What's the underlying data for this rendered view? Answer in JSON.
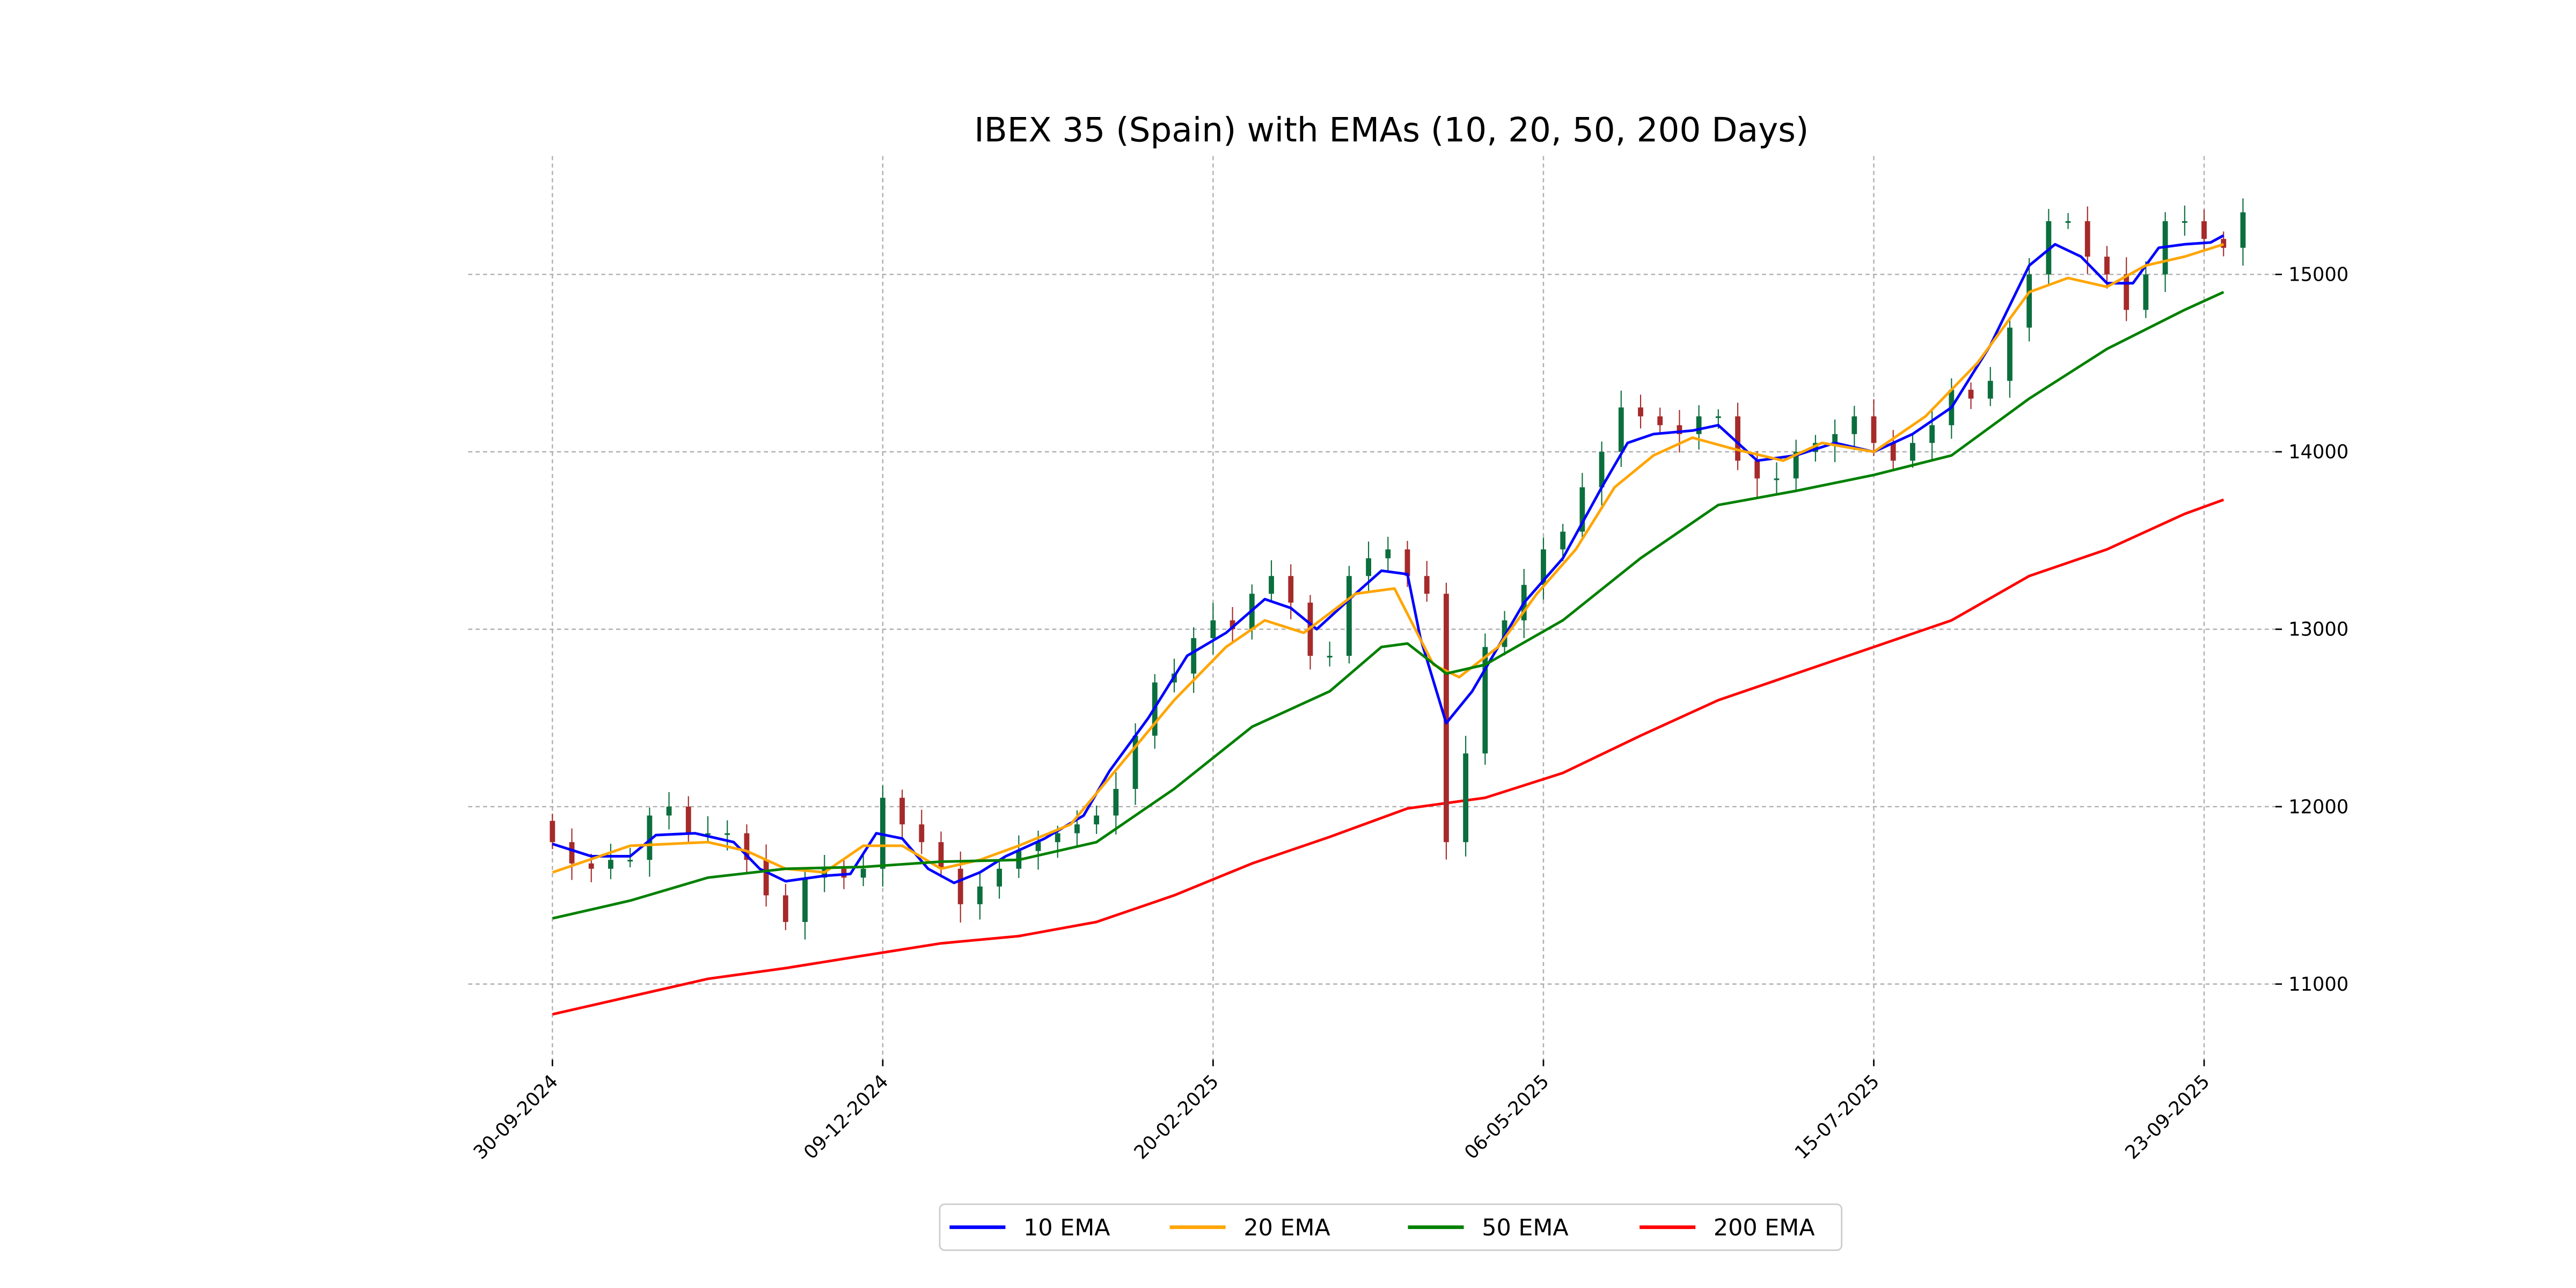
{
  "chart_data": {
    "type": "line",
    "subtype": "candlestick-with-ema",
    "title": "IBEX 35 (Spain) with EMAs (10, 20, 50, 200 Days)",
    "xlabel": "",
    "ylabel": "",
    "x_units": "trading days since 30-09-2024",
    "xlim": [
      -13,
      266
    ],
    "ylim": [
      10574,
      15667
    ],
    "grid": true,
    "legend_position": "bottom-center",
    "x_ticks": [
      {
        "day": 0,
        "label": "30-09-2024"
      },
      {
        "day": 51,
        "label": "09-12-2024"
      },
      {
        "day": 102,
        "label": "20-02-2025"
      },
      {
        "day": 153,
        "label": "06-05-2025"
      },
      {
        "day": 204,
        "label": "15-07-2025"
      },
      {
        "day": 255,
        "label": "23-09-2025"
      }
    ],
    "y_ticks": [
      {
        "value": 11000,
        "label": "11000"
      },
      {
        "value": 12000,
        "label": "12000"
      },
      {
        "value": 13000,
        "label": "13000"
      },
      {
        "value": 14000,
        "label": "14000"
      },
      {
        "value": 15000,
        "label": "15000"
      }
    ],
    "candles": {
      "day_step": 3,
      "first_open": 11920,
      "close": [
        11800,
        11680,
        11650,
        11700,
        11700,
        11950,
        12000,
        11850,
        11850,
        11850,
        11700,
        11500,
        11350,
        11600,
        11650,
        11600,
        11650,
        12050,
        11900,
        11800,
        11650,
        11450,
        11550,
        11650,
        11750,
        11800,
        11850,
        11900,
        11950,
        12100,
        12400,
        12700,
        12750,
        12950,
        13050,
        13000,
        13200,
        13300,
        13150,
        12850,
        12850,
        13300,
        13400,
        13450,
        13300,
        13200,
        11800,
        12300,
        12900,
        13050,
        13250,
        13450,
        13550,
        13800,
        14000,
        14250,
        14200,
        14150,
        14100,
        14200,
        14200,
        13950,
        13850,
        13850,
        14000,
        14050,
        14100,
        14200,
        14050,
        13950,
        14050,
        14150,
        14350,
        14300,
        14400,
        14700,
        15000,
        15300,
        15300,
        15100,
        15000,
        14800,
        15000,
        15300,
        15300,
        15200,
        15150,
        15350
      ]
    },
    "series": [
      {
        "name": "10 EMA",
        "color": "#0000ff",
        "points": [
          [
            0,
            11790
          ],
          [
            6,
            11720
          ],
          [
            12,
            11720
          ],
          [
            16,
            11840
          ],
          [
            22,
            11850
          ],
          [
            28,
            11800
          ],
          [
            32,
            11650
          ],
          [
            36,
            11580
          ],
          [
            42,
            11610
          ],
          [
            46,
            11620
          ],
          [
            50,
            11850
          ],
          [
            54,
            11820
          ],
          [
            58,
            11650
          ],
          [
            62,
            11570
          ],
          [
            66,
            11630
          ],
          [
            70,
            11720
          ],
          [
            76,
            11820
          ],
          [
            82,
            11950
          ],
          [
            86,
            12200
          ],
          [
            92,
            12500
          ],
          [
            98,
            12850
          ],
          [
            104,
            12980
          ],
          [
            110,
            13170
          ],
          [
            114,
            13120
          ],
          [
            118,
            13000
          ],
          [
            124,
            13200
          ],
          [
            128,
            13330
          ],
          [
            132,
            13310
          ],
          [
            134,
            12950
          ],
          [
            138,
            12470
          ],
          [
            142,
            12650
          ],
          [
            146,
            12900
          ],
          [
            150,
            13150
          ],
          [
            156,
            13400
          ],
          [
            162,
            13800
          ],
          [
            166,
            14050
          ],
          [
            170,
            14100
          ],
          [
            176,
            14120
          ],
          [
            180,
            14150
          ],
          [
            186,
            13950
          ],
          [
            192,
            13980
          ],
          [
            198,
            14050
          ],
          [
            204,
            14000
          ],
          [
            210,
            14100
          ],
          [
            216,
            14250
          ],
          [
            222,
            14600
          ],
          [
            228,
            15050
          ],
          [
            232,
            15170
          ],
          [
            236,
            15100
          ],
          [
            240,
            14950
          ],
          [
            244,
            14950
          ],
          [
            248,
            15150
          ],
          [
            252,
            15170
          ],
          [
            256,
            15180
          ],
          [
            258,
            15220
          ]
        ]
      },
      {
        "name": "20 EMA",
        "color": "#ffa500",
        "points": [
          [
            0,
            11630
          ],
          [
            12,
            11780
          ],
          [
            24,
            11800
          ],
          [
            30,
            11750
          ],
          [
            36,
            11650
          ],
          [
            42,
            11630
          ],
          [
            48,
            11780
          ],
          [
            54,
            11780
          ],
          [
            60,
            11650
          ],
          [
            66,
            11700
          ],
          [
            72,
            11780
          ],
          [
            80,
            11900
          ],
          [
            88,
            12250
          ],
          [
            96,
            12600
          ],
          [
            104,
            12900
          ],
          [
            110,
            13050
          ],
          [
            116,
            12980
          ],
          [
            124,
            13200
          ],
          [
            130,
            13230
          ],
          [
            136,
            12800
          ],
          [
            140,
            12730
          ],
          [
            146,
            12900
          ],
          [
            152,
            13200
          ],
          [
            158,
            13450
          ],
          [
            164,
            13800
          ],
          [
            170,
            13980
          ],
          [
            176,
            14080
          ],
          [
            182,
            14020
          ],
          [
            190,
            13950
          ],
          [
            196,
            14050
          ],
          [
            204,
            14000
          ],
          [
            212,
            14200
          ],
          [
            220,
            14500
          ],
          [
            228,
            14900
          ],
          [
            234,
            14980
          ],
          [
            240,
            14930
          ],
          [
            246,
            15050
          ],
          [
            252,
            15100
          ],
          [
            258,
            15170
          ]
        ]
      },
      {
        "name": "50 EMA",
        "color": "#008000",
        "points": [
          [
            0,
            11370
          ],
          [
            12,
            11470
          ],
          [
            24,
            11600
          ],
          [
            36,
            11650
          ],
          [
            48,
            11660
          ],
          [
            60,
            11690
          ],
          [
            72,
            11700
          ],
          [
            84,
            11800
          ],
          [
            96,
            12100
          ],
          [
            108,
            12450
          ],
          [
            120,
            12650
          ],
          [
            128,
            12900
          ],
          [
            132,
            12920
          ],
          [
            138,
            12750
          ],
          [
            144,
            12800
          ],
          [
            156,
            13050
          ],
          [
            168,
            13400
          ],
          [
            180,
            13700
          ],
          [
            192,
            13780
          ],
          [
            204,
            13870
          ],
          [
            216,
            13980
          ],
          [
            228,
            14300
          ],
          [
            240,
            14580
          ],
          [
            252,
            14800
          ],
          [
            258,
            14900
          ]
        ]
      },
      {
        "name": "200 EMA",
        "color": "#ff0000",
        "points": [
          [
            0,
            10830
          ],
          [
            12,
            10930
          ],
          [
            24,
            11030
          ],
          [
            36,
            11090
          ],
          [
            48,
            11160
          ],
          [
            60,
            11230
          ],
          [
            72,
            11270
          ],
          [
            84,
            11350
          ],
          [
            96,
            11500
          ],
          [
            108,
            11680
          ],
          [
            120,
            11830
          ],
          [
            132,
            11990
          ],
          [
            144,
            12050
          ],
          [
            156,
            12190
          ],
          [
            168,
            12400
          ],
          [
            180,
            12600
          ],
          [
            192,
            12750
          ],
          [
            204,
            12900
          ],
          [
            216,
            13050
          ],
          [
            228,
            13300
          ],
          [
            240,
            13450
          ],
          [
            252,
            13650
          ],
          [
            258,
            13730
          ]
        ]
      }
    ],
    "candle_colors": {
      "up": "#0b6e3d",
      "down": "#a62a2a"
    }
  }
}
